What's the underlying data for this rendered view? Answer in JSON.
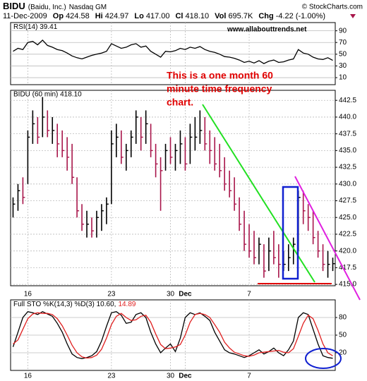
{
  "header": {
    "symbol": "BIDU",
    "name": "(Baidu, Inc.)",
    "exchange": "Nasdaq GM",
    "source": "© StockCharts.com",
    "date": "11-Dec-2009",
    "quote": [
      {
        "label": "Op",
        "value": "424.58"
      },
      {
        "label": "Hi",
        "value": "424.97"
      },
      {
        "label": "Lo",
        "value": "417.00"
      },
      {
        "label": "Cl",
        "value": "418.10"
      },
      {
        "label": "Vol",
        "value": "695.7K"
      },
      {
        "label": "Chg",
        "value": "-4.22 (-1.00%)"
      }
    ]
  },
  "chart_data": [
    {
      "type": "ohlc",
      "title": "BIDU (60 min) 418.10",
      "annotation": [
        "This is a one month 60",
        "minute time frequency",
        "chart."
      ],
      "categories": [
        null,
        null,
        null,
        "16",
        null,
        null,
        null,
        null,
        null,
        null,
        null,
        null,
        null,
        null,
        null,
        null,
        null,
        null,
        null,
        null,
        "23",
        null,
        null,
        null,
        null,
        null,
        null,
        null,
        null,
        null,
        null,
        null,
        "30",
        null,
        null,
        "Dec",
        null,
        null,
        null,
        null,
        null,
        null,
        null,
        null,
        null,
        null,
        null,
        null,
        "7",
        null,
        null,
        null,
        null,
        null,
        null,
        null,
        null,
        null,
        null,
        null,
        null,
        null,
        null,
        null,
        null,
        null
      ],
      "high": [
        428,
        430,
        431,
        438,
        441,
        440,
        443,
        441,
        440,
        439,
        438,
        437,
        436,
        431,
        427,
        426,
        425,
        426,
        427,
        428,
        438,
        439,
        438,
        436,
        438,
        441,
        440,
        441,
        439,
        436,
        434,
        436,
        437,
        436,
        438,
        437,
        439,
        440,
        441,
        440,
        438,
        437,
        436,
        434,
        432,
        431,
        428,
        426,
        424,
        423,
        422,
        421,
        422,
        423,
        421,
        420,
        421,
        422,
        429,
        429,
        427,
        426,
        423,
        421,
        420,
        419
      ],
      "low": [
        425,
        426,
        427,
        430,
        436,
        436,
        437,
        437,
        436,
        434,
        434,
        432,
        430,
        425,
        423,
        422,
        422,
        422,
        423,
        424,
        427,
        434,
        433,
        432,
        434,
        436,
        435,
        436,
        434,
        431,
        426,
        432,
        433,
        432,
        433,
        432,
        433,
        435,
        436,
        435,
        433,
        432,
        431,
        429,
        428,
        426,
        423,
        420,
        419,
        418,
        418,
        416,
        417,
        418,
        416,
        417,
        417,
        418,
        420,
        424,
        423,
        421,
        419,
        417,
        416,
        417
      ],
      "close": [
        427,
        429,
        428,
        437,
        439,
        437,
        440,
        438,
        438,
        436,
        435,
        434,
        431,
        426,
        424,
        424,
        423,
        425,
        426,
        427,
        436,
        437,
        434,
        435,
        437,
        440,
        437,
        439,
        435,
        433,
        432,
        435,
        434,
        435,
        436,
        433,
        437,
        437,
        438,
        436,
        435,
        433,
        432,
        430,
        429,
        427,
        424,
        421,
        420,
        419,
        421,
        417,
        420,
        419,
        418,
        418,
        419,
        421,
        428,
        426,
        425,
        422,
        420,
        418,
        418,
        418.1
      ],
      "color_up": "#000000",
      "color_down": "#a8154a",
      "ylim": [
        414.8,
        444
      ],
      "grid": true,
      "yticks": [
        {
          "value": 415,
          "label": "415.0"
        },
        417.5,
        {
          "value": 420,
          "label": "420.0"
        },
        422.5,
        {
          "value": 425,
          "label": "425.0"
        },
        427.5,
        {
          "value": 430,
          "label": "430.0"
        },
        432.5,
        {
          "value": 435,
          "label": "435.0"
        },
        437.5,
        {
          "value": 440,
          "label": "440.0"
        },
        442.5
      ]
    },
    {
      "type": "line",
      "title": "RSI(14) 39.41",
      "subtitle": "www.allabouttrends.net",
      "color": "#000000",
      "values": [
        55,
        60,
        58,
        70,
        72,
        66,
        74,
        65,
        62,
        58,
        56,
        52,
        47,
        44,
        42,
        45,
        48,
        50,
        52,
        55,
        68,
        64,
        60,
        62,
        66,
        68,
        62,
        64,
        55,
        50,
        45,
        55,
        54,
        56,
        60,
        58,
        62,
        60,
        63,
        58,
        55,
        53,
        50,
        46,
        45,
        43,
        40,
        36,
        38,
        35,
        39,
        34,
        38,
        40,
        36,
        37,
        40,
        42,
        58,
        52,
        50,
        45,
        42,
        41,
        44,
        39.41
      ],
      "ylim": [
        -2,
        104
      ],
      "yticks": [
        10,
        30,
        50,
        70,
        90
      ]
    },
    {
      "type": "line",
      "title": "Full STO %K(14,3) %D(3) 10.60,",
      "title_d": "14.89",
      "series": [
        {
          "color": "#000000",
          "values": [
            30,
            55,
            80,
            90,
            88,
            85,
            90,
            86,
            82,
            70,
            55,
            35,
            18,
            12,
            10,
            12,
            15,
            22,
            40,
            65,
            88,
            90,
            84,
            70,
            72,
            85,
            88,
            80,
            55,
            35,
            20,
            28,
            35,
            22,
            45,
            80,
            88,
            85,
            88,
            82,
            75,
            55,
            40,
            25,
            20,
            18,
            15,
            12,
            15,
            20,
            25,
            18,
            22,
            28,
            20,
            15,
            25,
            40,
            80,
            88,
            85,
            60,
            35,
            15,
            12,
            10.6
          ]
        },
        {
          "color": "#e02020",
          "values": [
            35,
            42,
            60,
            78,
            86,
            88,
            87,
            87,
            85,
            78,
            66,
            50,
            33,
            20,
            13,
            11,
            12,
            16,
            26,
            45,
            68,
            82,
            87,
            80,
            75,
            76,
            82,
            84,
            72,
            52,
            34,
            27,
            28,
            30,
            34,
            50,
            72,
            85,
            87,
            85,
            80,
            68,
            55,
            38,
            28,
            21,
            18,
            15,
            14,
            16,
            20,
            21,
            22,
            23,
            24,
            21,
            20,
            27,
            48,
            70,
            84,
            78,
            58,
            35,
            20,
            14.89
          ]
        }
      ],
      "ylim": [
        -10,
        110
      ],
      "yticks": [
        20,
        50,
        80
      ]
    }
  ]
}
